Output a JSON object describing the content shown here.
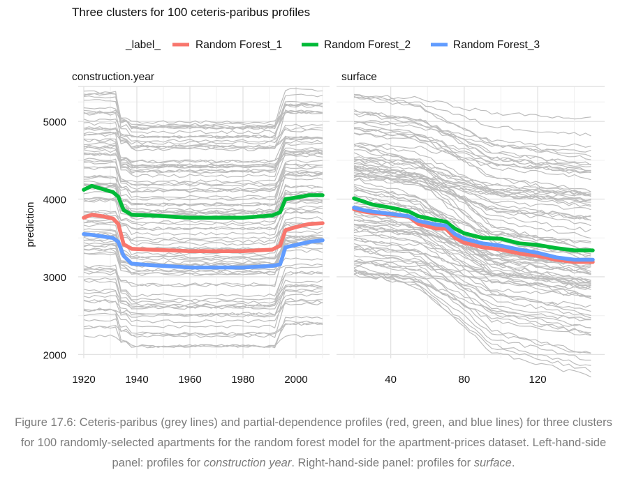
{
  "chart_data": {
    "type": "line",
    "title": "Three clusters for 100 ceteris-paribus profiles",
    "legend": {
      "title": "_label_",
      "placement": "top",
      "entries": [
        {
          "name": "Random Forest_1",
          "color": "#F8766D"
        },
        {
          "name": "Random Forest_2",
          "color": "#00BA38"
        },
        {
          "name": "Random Forest_3",
          "color": "#619CFF"
        }
      ]
    },
    "ylabel": "prediction",
    "ylim": [
      1950,
      5450
    ],
    "yticks": [
      2000,
      3000,
      4000,
      5000
    ],
    "background_profile_color": "#bdbdbd",
    "panels": [
      {
        "title": "construction.year",
        "xlabel": "",
        "xlim": [
          1920,
          2010
        ],
        "xticks": [
          1920,
          1940,
          1960,
          1980,
          2000
        ],
        "series": [
          {
            "name": "Random Forest_1",
            "x": [
              1920,
              1923,
              1927,
              1931,
              1933,
              1935,
              1938,
              1945,
              1960,
              1980,
              1991,
              1994,
              1996,
              2000,
              2005,
              2010
            ],
            "y": [
              3760,
              3800,
              3780,
              3750,
              3680,
              3420,
              3360,
              3350,
              3330,
              3330,
              3350,
              3400,
              3600,
              3640,
              3680,
              3690
            ]
          },
          {
            "name": "Random Forest_2",
            "x": [
              1920,
              1923,
              1927,
              1931,
              1933,
              1935,
              1938,
              1945,
              1960,
              1980,
              1991,
              1994,
              1996,
              2000,
              2005,
              2010
            ],
            "y": [
              4120,
              4170,
              4130,
              4090,
              4030,
              3860,
              3800,
              3790,
              3760,
              3760,
              3790,
              3830,
              4000,
              4020,
              4050,
              4050
            ]
          },
          {
            "name": "Random Forest_3",
            "x": [
              1920,
              1923,
              1927,
              1931,
              1933,
              1935,
              1938,
              1945,
              1960,
              1980,
              1991,
              1994,
              1996,
              2000,
              2005,
              2010
            ],
            "y": [
              3550,
              3540,
              3520,
              3500,
              3450,
              3270,
              3170,
              3150,
              3120,
              3120,
              3140,
              3160,
              3380,
              3410,
              3450,
              3470
            ]
          }
        ]
      },
      {
        "title": "surface",
        "xlabel": "",
        "xlim": [
          20,
          150
        ],
        "xticks": [
          40,
          80,
          120
        ],
        "series": [
          {
            "name": "Random Forest_1",
            "x": [
              20,
              25,
              30,
              40,
              50,
              55,
              65,
              70,
              75,
              80,
              90,
              100,
              110,
              120,
              130,
              140,
              150
            ],
            "y": [
              3870,
              3840,
              3820,
              3800,
              3770,
              3680,
              3620,
              3620,
              3500,
              3440,
              3380,
              3350,
              3300,
              3270,
              3220,
              3190,
              3190
            ]
          },
          {
            "name": "Random Forest_2",
            "x": [
              20,
              25,
              30,
              40,
              50,
              55,
              65,
              70,
              75,
              80,
              90,
              100,
              110,
              120,
              130,
              140,
              150
            ],
            "y": [
              4010,
              3970,
              3930,
              3890,
              3840,
              3780,
              3730,
              3710,
              3620,
              3560,
              3500,
              3490,
              3430,
              3410,
              3370,
              3340,
              3340
            ]
          },
          {
            "name": "Random Forest_3",
            "x": [
              20,
              25,
              30,
              40,
              50,
              55,
              65,
              70,
              75,
              80,
              90,
              100,
              110,
              120,
              130,
              140,
              150
            ],
            "y": [
              3890,
              3860,
              3840,
              3810,
              3780,
              3720,
              3670,
              3660,
              3550,
              3490,
              3430,
              3400,
              3350,
              3310,
              3250,
              3220,
              3220
            ]
          }
        ]
      }
    ]
  },
  "caption": {
    "prefix": "Figure 17.6: Ceteris-paribus (grey lines) and partial-dependence profiles (red, green, and blue lines) for three clusters for 100 randomly-selected apartments for the random forest model for the apartment-prices dataset. Left-hand-side panel: profiles for ",
    "em1": "construction year",
    "middle": ". Right-hand-side panel: profiles for ",
    "em2": "surface",
    "suffix": "."
  }
}
